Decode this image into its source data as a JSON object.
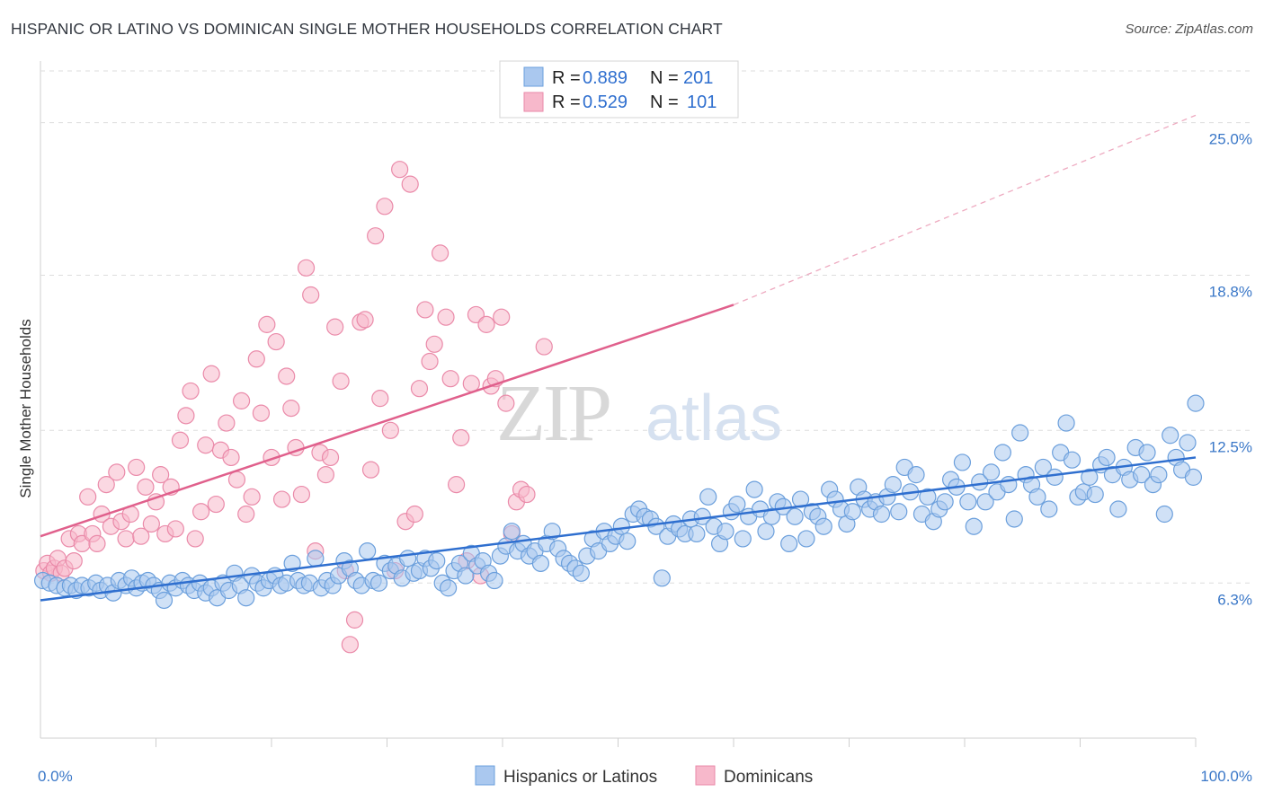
{
  "header": {
    "title": "HISPANIC OR LATINO VS DOMINICAN SINGLE MOTHER HOUSEHOLDS CORRELATION CHART",
    "source": "Source: ZipAtlas.com"
  },
  "watermark": {
    "zip": "ZIP",
    "atlas": "atlas"
  },
  "legend": {
    "rows": [
      {
        "r_label": "R = ",
        "r_value": "0.889",
        "n_label": "N = ",
        "n_value": "201"
      },
      {
        "r_label": "R = ",
        "r_value": "0.529",
        "n_label": "N = ",
        "n_value": "101"
      }
    ]
  },
  "colors": {
    "blue_fill": "#aac8ef",
    "blue_stroke": "#6b9fdc",
    "blue_line": "#2f6fcf",
    "pink_fill": "#f7b8cb",
    "pink_stroke": "#ea8aa9",
    "pink_line": "#e0608c",
    "tick_text": "#3b78c8",
    "grid": "#dddddd"
  },
  "chart_data": {
    "type": "scatter",
    "title": "HISPANIC OR LATINO VS DOMINICAN SINGLE MOTHER HOUSEHOLDS CORRELATION CHART",
    "xlabel": "",
    "ylabel": "Single Mother Households",
    "xlim": [
      0,
      100
    ],
    "ylim": [
      0,
      27.1
    ],
    "x_tick_labels": [
      "0.0%",
      "100.0%"
    ],
    "y_ticks": [
      6.3,
      12.5,
      18.8,
      25.0
    ],
    "y_tick_labels": [
      "6.3%",
      "12.5%",
      "18.8%",
      "25.0%"
    ],
    "grid": "horizontal dashed",
    "legend_position": "top-center",
    "series": [
      {
        "name": "Hispanics or Latinos",
        "r": 0.889,
        "n": 201,
        "trend": {
          "x": [
            0,
            100
          ],
          "y": [
            5.6,
            11.4
          ],
          "dashed_extension": false
        },
        "points": [
          [
            0.2,
            6.4
          ],
          [
            0.8,
            6.3
          ],
          [
            1.4,
            6.2
          ],
          [
            2.1,
            6.1
          ],
          [
            2.6,
            6.2
          ],
          [
            3.1,
            6.0
          ],
          [
            3.6,
            6.2
          ],
          [
            4.2,
            6.1
          ],
          [
            4.8,
            6.3
          ],
          [
            5.2,
            6.0
          ],
          [
            5.8,
            6.2
          ],
          [
            6.3,
            5.9
          ],
          [
            6.8,
            6.4
          ],
          [
            7.4,
            6.2
          ],
          [
            7.9,
            6.5
          ],
          [
            8.3,
            6.1
          ],
          [
            8.8,
            6.3
          ],
          [
            9.3,
            6.4
          ],
          [
            9.8,
            6.2
          ],
          [
            10.3,
            6.0
          ],
          [
            10.7,
            5.6
          ],
          [
            11.2,
            6.3
          ],
          [
            11.7,
            6.1
          ],
          [
            12.3,
            6.4
          ],
          [
            12.8,
            6.2
          ],
          [
            13.3,
            6.0
          ],
          [
            13.8,
            6.3
          ],
          [
            14.3,
            5.9
          ],
          [
            14.8,
            6.1
          ],
          [
            15.3,
            5.7
          ],
          [
            15.8,
            6.3
          ],
          [
            16.3,
            6.0
          ],
          [
            16.8,
            6.7
          ],
          [
            17.3,
            6.2
          ],
          [
            17.8,
            5.7
          ],
          [
            18.3,
            6.6
          ],
          [
            18.8,
            6.3
          ],
          [
            19.3,
            6.1
          ],
          [
            19.8,
            6.4
          ],
          [
            20.3,
            6.6
          ],
          [
            20.8,
            6.2
          ],
          [
            21.3,
            6.3
          ],
          [
            21.8,
            7.1
          ],
          [
            22.3,
            6.4
          ],
          [
            22.8,
            6.2
          ],
          [
            23.3,
            6.3
          ],
          [
            23.8,
            7.3
          ],
          [
            24.3,
            6.1
          ],
          [
            24.8,
            6.4
          ],
          [
            25.3,
            6.2
          ],
          [
            25.8,
            6.6
          ],
          [
            26.3,
            7.2
          ],
          [
            26.8,
            6.9
          ],
          [
            27.3,
            6.4
          ],
          [
            27.8,
            6.2
          ],
          [
            28.3,
            7.6
          ],
          [
            28.8,
            6.4
          ],
          [
            29.3,
            6.3
          ],
          [
            29.8,
            7.1
          ],
          [
            30.3,
            6.8
          ],
          [
            30.8,
            7.0
          ],
          [
            31.3,
            6.5
          ],
          [
            31.8,
            7.3
          ],
          [
            32.3,
            6.7
          ],
          [
            32.8,
            6.8
          ],
          [
            33.3,
            7.3
          ],
          [
            33.8,
            6.9
          ],
          [
            34.3,
            7.2
          ],
          [
            34.8,
            6.3
          ],
          [
            35.3,
            6.1
          ],
          [
            35.8,
            6.8
          ],
          [
            36.3,
            7.1
          ],
          [
            36.8,
            6.6
          ],
          [
            37.3,
            7.5
          ],
          [
            37.8,
            7.0
          ],
          [
            38.3,
            7.2
          ],
          [
            38.8,
            6.7
          ],
          [
            39.3,
            6.4
          ],
          [
            39.8,
            7.4
          ],
          [
            40.3,
            7.8
          ],
          [
            40.8,
            8.4
          ],
          [
            41.3,
            7.6
          ],
          [
            41.8,
            7.9
          ],
          [
            42.3,
            7.4
          ],
          [
            42.8,
            7.6
          ],
          [
            43.3,
            7.1
          ],
          [
            43.8,
            7.9
          ],
          [
            44.3,
            8.4
          ],
          [
            44.8,
            7.7
          ],
          [
            45.3,
            7.3
          ],
          [
            45.8,
            7.1
          ],
          [
            46.3,
            6.9
          ],
          [
            46.8,
            6.7
          ],
          [
            47.3,
            7.4
          ],
          [
            47.8,
            8.1
          ],
          [
            48.3,
            7.6
          ],
          [
            48.8,
            8.4
          ],
          [
            49.3,
            7.9
          ],
          [
            49.8,
            8.2
          ],
          [
            50.3,
            8.6
          ],
          [
            50.8,
            8.0
          ],
          [
            51.3,
            9.1
          ],
          [
            51.8,
            9.3
          ],
          [
            52.3,
            9.0
          ],
          [
            52.8,
            8.9
          ],
          [
            53.3,
            8.6
          ],
          [
            53.8,
            6.5
          ],
          [
            54.3,
            8.2
          ],
          [
            54.8,
            8.7
          ],
          [
            55.3,
            8.5
          ],
          [
            55.8,
            8.3
          ],
          [
            56.3,
            8.9
          ],
          [
            56.8,
            8.3
          ],
          [
            57.3,
            9.0
          ],
          [
            57.8,
            9.8
          ],
          [
            58.3,
            8.6
          ],
          [
            58.8,
            7.9
          ],
          [
            59.3,
            8.4
          ],
          [
            59.8,
            9.2
          ],
          [
            60.3,
            9.5
          ],
          [
            60.8,
            8.1
          ],
          [
            61.3,
            9.0
          ],
          [
            61.8,
            10.1
          ],
          [
            62.3,
            9.3
          ],
          [
            62.8,
            8.4
          ],
          [
            63.3,
            9.0
          ],
          [
            63.8,
            9.6
          ],
          [
            64.3,
            9.4
          ],
          [
            64.8,
            7.9
          ],
          [
            65.3,
            9.0
          ],
          [
            65.8,
            9.7
          ],
          [
            66.3,
            8.1
          ],
          [
            66.8,
            9.2
          ],
          [
            67.3,
            9.0
          ],
          [
            67.8,
            8.6
          ],
          [
            68.3,
            10.1
          ],
          [
            68.8,
            9.7
          ],
          [
            69.3,
            9.3
          ],
          [
            69.8,
            8.7
          ],
          [
            70.3,
            9.2
          ],
          [
            70.8,
            10.2
          ],
          [
            71.3,
            9.7
          ],
          [
            71.8,
            9.3
          ],
          [
            72.3,
            9.6
          ],
          [
            72.8,
            9.1
          ],
          [
            73.3,
            9.8
          ],
          [
            73.8,
            10.3
          ],
          [
            74.3,
            9.2
          ],
          [
            74.8,
            11.0
          ],
          [
            75.3,
            10.0
          ],
          [
            75.8,
            10.7
          ],
          [
            76.3,
            9.1
          ],
          [
            76.8,
            9.8
          ],
          [
            77.3,
            8.8
          ],
          [
            77.8,
            9.3
          ],
          [
            78.3,
            9.6
          ],
          [
            78.8,
            10.5
          ],
          [
            79.3,
            10.2
          ],
          [
            79.8,
            11.2
          ],
          [
            80.3,
            9.6
          ],
          [
            80.8,
            8.6
          ],
          [
            81.3,
            10.4
          ],
          [
            81.8,
            9.6
          ],
          [
            82.3,
            10.8
          ],
          [
            82.8,
            10.0
          ],
          [
            83.3,
            11.6
          ],
          [
            83.8,
            10.3
          ],
          [
            84.3,
            8.9
          ],
          [
            84.8,
            12.4
          ],
          [
            85.3,
            10.7
          ],
          [
            85.8,
            10.3
          ],
          [
            86.3,
            9.8
          ],
          [
            86.8,
            11.0
          ],
          [
            87.3,
            9.3
          ],
          [
            87.8,
            10.6
          ],
          [
            88.3,
            11.6
          ],
          [
            88.8,
            12.8
          ],
          [
            89.3,
            11.3
          ],
          [
            89.8,
            9.8
          ],
          [
            90.3,
            10.0
          ],
          [
            90.8,
            10.6
          ],
          [
            91.3,
            9.9
          ],
          [
            91.8,
            11.1
          ],
          [
            92.3,
            11.4
          ],
          [
            92.8,
            10.7
          ],
          [
            93.3,
            9.3
          ],
          [
            93.8,
            11.0
          ],
          [
            94.3,
            10.5
          ],
          [
            94.8,
            11.8
          ],
          [
            95.3,
            10.7
          ],
          [
            95.8,
            11.6
          ],
          [
            96.3,
            10.3
          ],
          [
            96.8,
            10.7
          ],
          [
            97.3,
            9.1
          ],
          [
            97.8,
            12.3
          ],
          [
            98.3,
            11.4
          ],
          [
            98.8,
            10.9
          ],
          [
            99.3,
            12.0
          ],
          [
            99.8,
            10.6
          ],
          [
            100.0,
            13.6
          ]
        ]
      },
      {
        "name": "Dominicans",
        "r": 0.529,
        "n": 101,
        "trend": {
          "x": [
            0,
            60
          ],
          "y": [
            8.2,
            17.6
          ],
          "dashed_to": [
            100,
            25.3
          ]
        },
        "points": [
          [
            0.3,
            6.8
          ],
          [
            0.6,
            7.1
          ],
          [
            0.9,
            6.7
          ],
          [
            1.2,
            6.9
          ],
          [
            1.5,
            7.3
          ],
          [
            1.8,
            6.7
          ],
          [
            2.1,
            6.9
          ],
          [
            2.5,
            8.1
          ],
          [
            2.9,
            7.2
          ],
          [
            3.3,
            8.3
          ],
          [
            3.6,
            7.9
          ],
          [
            4.1,
            9.8
          ],
          [
            4.5,
            8.3
          ],
          [
            4.9,
            7.9
          ],
          [
            5.3,
            9.1
          ],
          [
            5.7,
            10.3
          ],
          [
            6.1,
            8.6
          ],
          [
            6.6,
            10.8
          ],
          [
            7.0,
            8.8
          ],
          [
            7.4,
            8.1
          ],
          [
            7.8,
            9.1
          ],
          [
            8.3,
            11.0
          ],
          [
            8.7,
            8.2
          ],
          [
            9.1,
            10.2
          ],
          [
            9.6,
            8.7
          ],
          [
            10.0,
            9.6
          ],
          [
            10.4,
            10.7
          ],
          [
            10.8,
            8.3
          ],
          [
            11.3,
            10.2
          ],
          [
            11.7,
            8.5
          ],
          [
            12.1,
            12.1
          ],
          [
            12.6,
            13.1
          ],
          [
            13.0,
            14.1
          ],
          [
            13.4,
            8.1
          ],
          [
            13.9,
            9.2
          ],
          [
            14.3,
            11.9
          ],
          [
            14.8,
            14.8
          ],
          [
            15.2,
            9.5
          ],
          [
            15.6,
            11.7
          ],
          [
            16.1,
            12.8
          ],
          [
            16.5,
            11.4
          ],
          [
            17.0,
            10.5
          ],
          [
            17.4,
            13.7
          ],
          [
            17.8,
            9.1
          ],
          [
            18.3,
            9.8
          ],
          [
            18.7,
            15.4
          ],
          [
            19.1,
            13.2
          ],
          [
            19.6,
            16.8
          ],
          [
            20.0,
            11.4
          ],
          [
            20.4,
            16.1
          ],
          [
            20.9,
            9.7
          ],
          [
            21.3,
            14.7
          ],
          [
            21.7,
            13.4
          ],
          [
            22.1,
            11.8
          ],
          [
            22.6,
            9.9
          ],
          [
            23.0,
            19.1
          ],
          [
            23.4,
            18.0
          ],
          [
            23.8,
            7.6
          ],
          [
            24.2,
            11.6
          ],
          [
            24.7,
            10.7
          ],
          [
            25.1,
            11.4
          ],
          [
            25.5,
            16.7
          ],
          [
            26.0,
            14.5
          ],
          [
            26.4,
            6.8
          ],
          [
            26.8,
            3.8
          ],
          [
            27.2,
            4.8
          ],
          [
            27.7,
            16.9
          ],
          [
            28.1,
            17.0
          ],
          [
            28.6,
            10.9
          ],
          [
            29.0,
            20.4
          ],
          [
            29.4,
            13.8
          ],
          [
            29.8,
            21.6
          ],
          [
            30.3,
            12.5
          ],
          [
            30.7,
            6.8
          ],
          [
            31.1,
            23.1
          ],
          [
            31.6,
            8.8
          ],
          [
            32.0,
            22.5
          ],
          [
            32.4,
            9.1
          ],
          [
            32.8,
            14.2
          ],
          [
            33.3,
            17.4
          ],
          [
            33.7,
            15.3
          ],
          [
            34.1,
            16.0
          ],
          [
            34.6,
            19.7
          ],
          [
            35.1,
            17.1
          ],
          [
            35.5,
            14.6
          ],
          [
            36.0,
            10.3
          ],
          [
            36.4,
            12.2
          ],
          [
            36.9,
            7.2
          ],
          [
            37.3,
            14.4
          ],
          [
            37.7,
            17.2
          ],
          [
            38.1,
            6.6
          ],
          [
            38.6,
            16.8
          ],
          [
            39.0,
            14.3
          ],
          [
            39.4,
            14.6
          ],
          [
            39.9,
            17.1
          ],
          [
            40.3,
            13.6
          ],
          [
            40.8,
            8.3
          ],
          [
            41.2,
            9.6
          ],
          [
            41.6,
            10.1
          ],
          [
            42.1,
            9.9
          ],
          [
            43.6,
            15.9
          ]
        ]
      }
    ]
  }
}
